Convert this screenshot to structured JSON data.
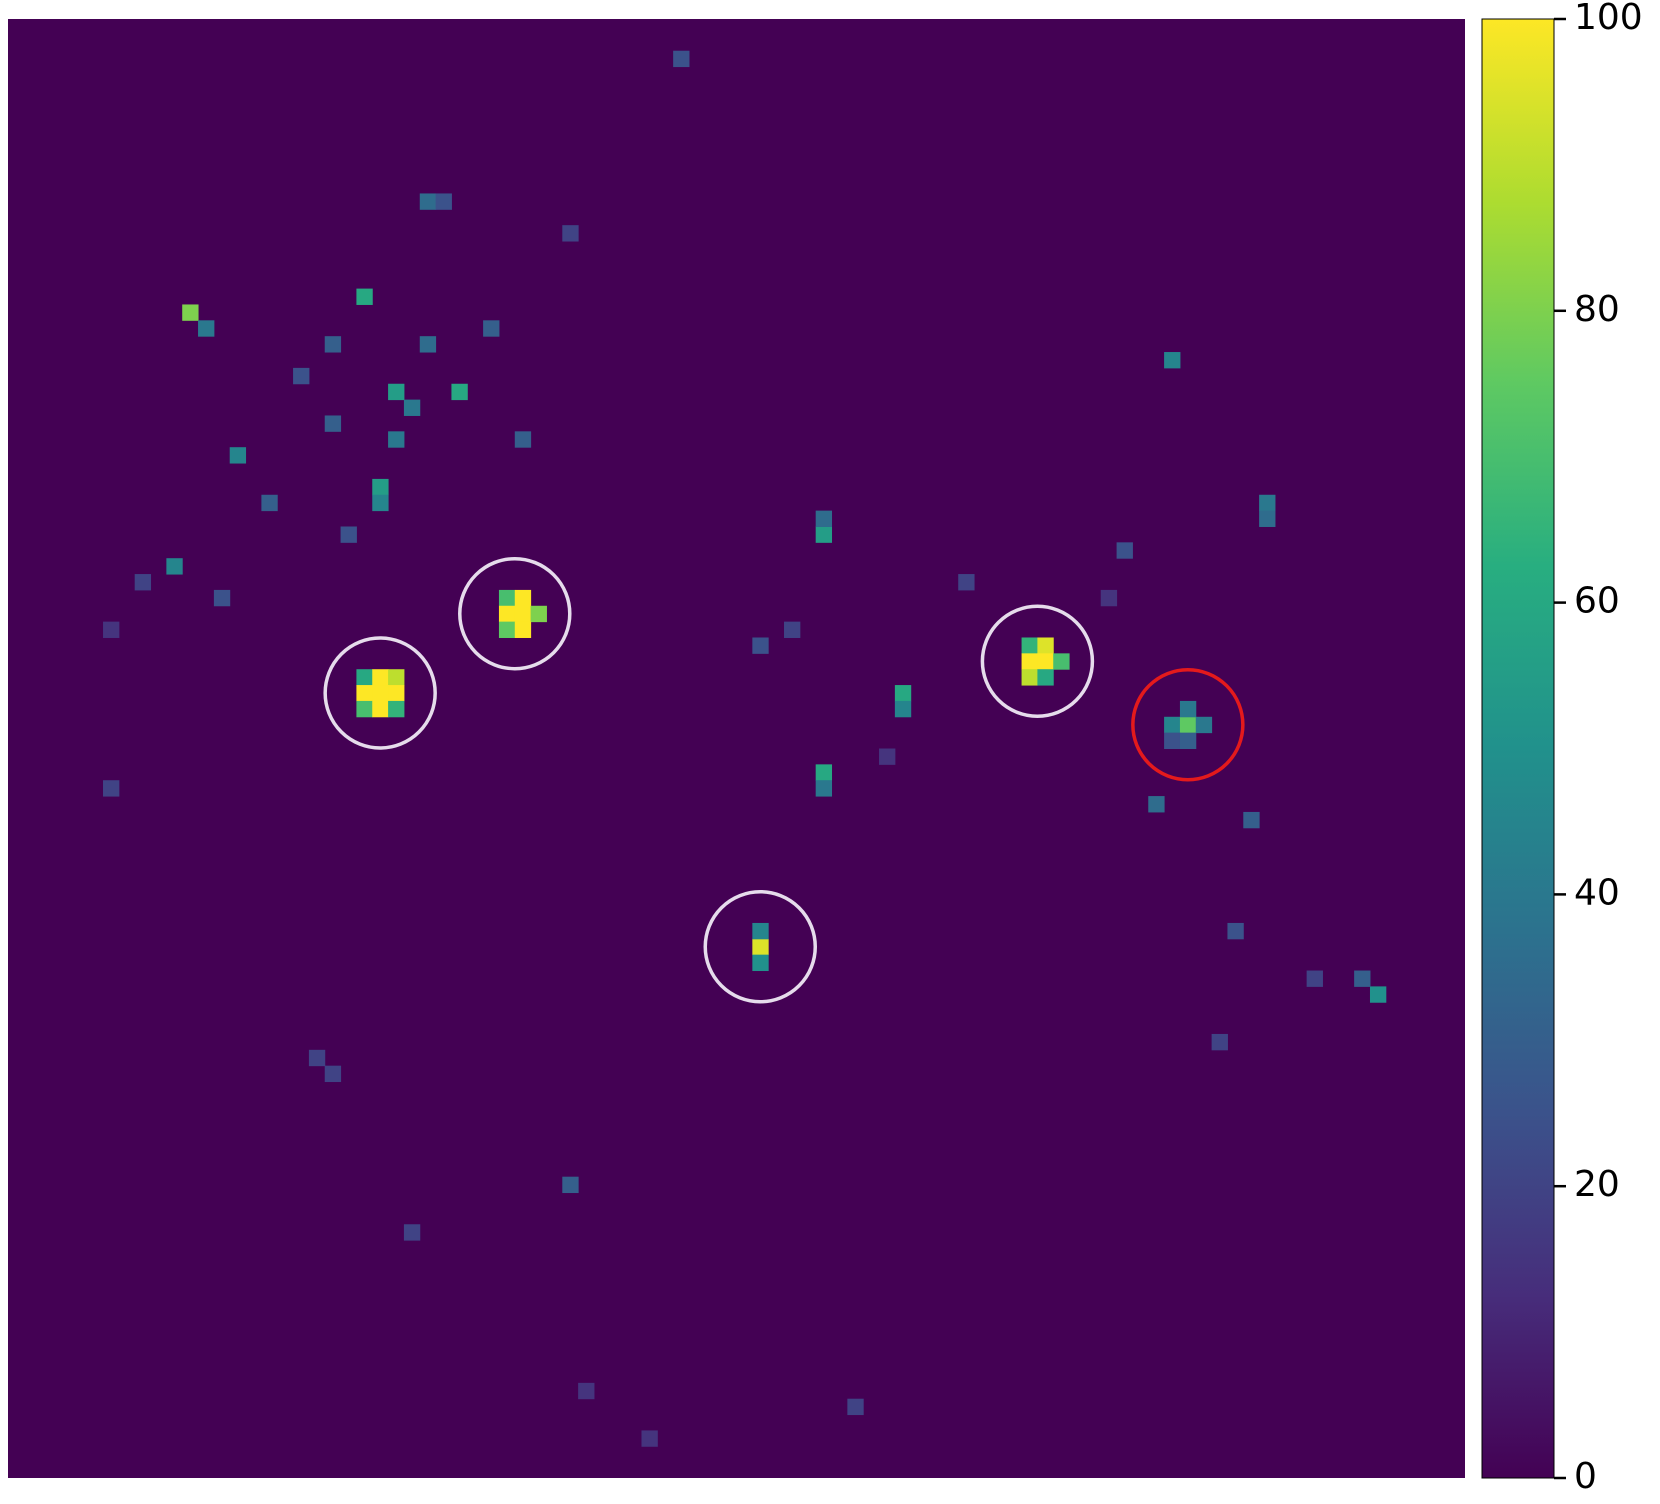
{
  "chart_data": {
    "type": "heatmap",
    "cmap": "viridis",
    "xlim": [
      0,
      92
    ],
    "ylim": [
      0,
      92
    ],
    "x": [
      22,
      23,
      24,
      22,
      23,
      24,
      22,
      23,
      24,
      31,
      32,
      31,
      32,
      33,
      31,
      32,
      64,
      65,
      64,
      65,
      66,
      64,
      65,
      47,
      47,
      47,
      73,
      74,
      75,
      74,
      73,
      74,
      51,
      51,
      56,
      56,
      51,
      51,
      73,
      79,
      79,
      11,
      12,
      22,
      24,
      25,
      28,
      23,
      23,
      14,
      10,
      86,
      85,
      72,
      78,
      35,
      19,
      20,
      53,
      26,
      27,
      42,
      20,
      18,
      26,
      30,
      24,
      20,
      16,
      21,
      8,
      6,
      13,
      32,
      35,
      49,
      47,
      70,
      69,
      77,
      76,
      82,
      60,
      55,
      25,
      36,
      40,
      6
    ],
    "y": [
      41,
      41,
      41,
      42,
      42,
      42,
      43,
      43,
      43,
      36,
      36,
      37,
      37,
      37,
      38,
      38,
      39,
      39,
      40,
      40,
      40,
      41,
      41,
      58,
      57,
      59,
      44,
      44,
      44,
      43,
      45,
      45,
      32,
      31,
      42,
      43,
      47,
      48,
      21,
      30,
      31,
      18,
      19,
      17,
      23,
      24,
      23,
      29,
      30,
      27,
      34,
      61,
      60,
      49,
      50,
      73,
      65,
      66,
      87,
      11,
      11,
      2,
      20,
      22,
      20,
      19,
      26,
      25,
      30,
      32,
      35,
      38,
      36,
      26,
      13,
      38,
      39,
      33,
      36,
      57,
      64,
      60,
      35,
      46,
      76,
      86,
      89,
      48
    ],
    "values": [
      60,
      100,
      90,
      100,
      100,
      100,
      70,
      100,
      65,
      70,
      100,
      100,
      100,
      80,
      75,
      100,
      65,
      95,
      100,
      100,
      70,
      90,
      60,
      95,
      45,
      50,
      45,
      75,
      40,
      40,
      25,
      30,
      55,
      35,
      60,
      45,
      60,
      40,
      45,
      40,
      35,
      80,
      40,
      60,
      55,
      40,
      60,
      55,
      45,
      45,
      45,
      50,
      30,
      35,
      30,
      30,
      20,
      20,
      20,
      35,
      25,
      25,
      30,
      25,
      35,
      30,
      40,
      30,
      30,
      25,
      20,
      15,
      25,
      30,
      20,
      20,
      25,
      25,
      15,
      25,
      20,
      20,
      20,
      15,
      20,
      15,
      15,
      20
    ],
    "clim": [
      0,
      100
    ],
    "cticks": [
      0,
      20,
      40,
      60,
      80,
      100
    ],
    "annotations": [
      {
        "x": 23.5,
        "y": 42.5,
        "color": "#e6dcec"
      },
      {
        "x": 32,
        "y": 37.5,
        "color": "#e6dcec"
      },
      {
        "x": 65,
        "y": 40.5,
        "color": "#e6dcec"
      },
      {
        "x": 47.5,
        "y": 58.5,
        "color": "#e6dcec"
      },
      {
        "x": 74.5,
        "y": 44.5,
        "color": "#e41a1c"
      }
    ]
  }
}
